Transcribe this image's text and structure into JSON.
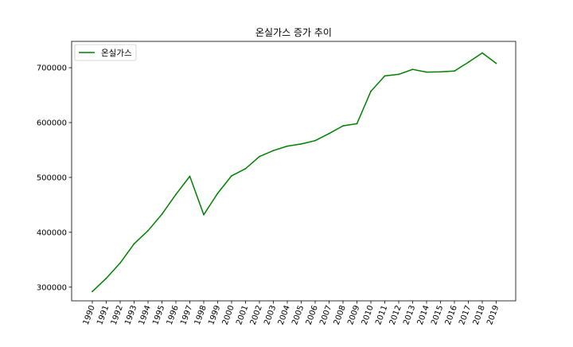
{
  "chart_data": {
    "type": "line",
    "title": "온실가스 증가 추이",
    "xlabel": "",
    "ylabel": "",
    "x": [
      "1990",
      "1991",
      "1992",
      "1993",
      "1994",
      "1995",
      "1996",
      "1997",
      "1998",
      "1999",
      "2000",
      "2001",
      "2002",
      "2003",
      "2004",
      "2005",
      "2006",
      "2007",
      "2008",
      "2009",
      "2010",
      "2011",
      "2012",
      "2013",
      "2014",
      "2015",
      "2016",
      "2017",
      "2018",
      "2019"
    ],
    "series": [
      {
        "name": "온실가스",
        "color": "#008000",
        "values": [
          292000,
          316000,
          344000,
          379000,
          403000,
          433000,
          469000,
          502000,
          432000,
          471000,
          503000,
          516000,
          538000,
          549000,
          557000,
          561000,
          567000,
          580000,
          594000,
          598000,
          657000,
          685000,
          688000,
          697000,
          692000,
          692500,
          694000,
          710000,
          727000,
          708000
        ]
      }
    ],
    "ylim": [
      275000,
      748000
    ],
    "yticks": [
      300000,
      400000,
      500000,
      600000,
      700000
    ],
    "ytick_labels": [
      "300000",
      "400000",
      "500000",
      "600000",
      "700000"
    ],
    "legend_position": "top-left",
    "grid": false
  }
}
